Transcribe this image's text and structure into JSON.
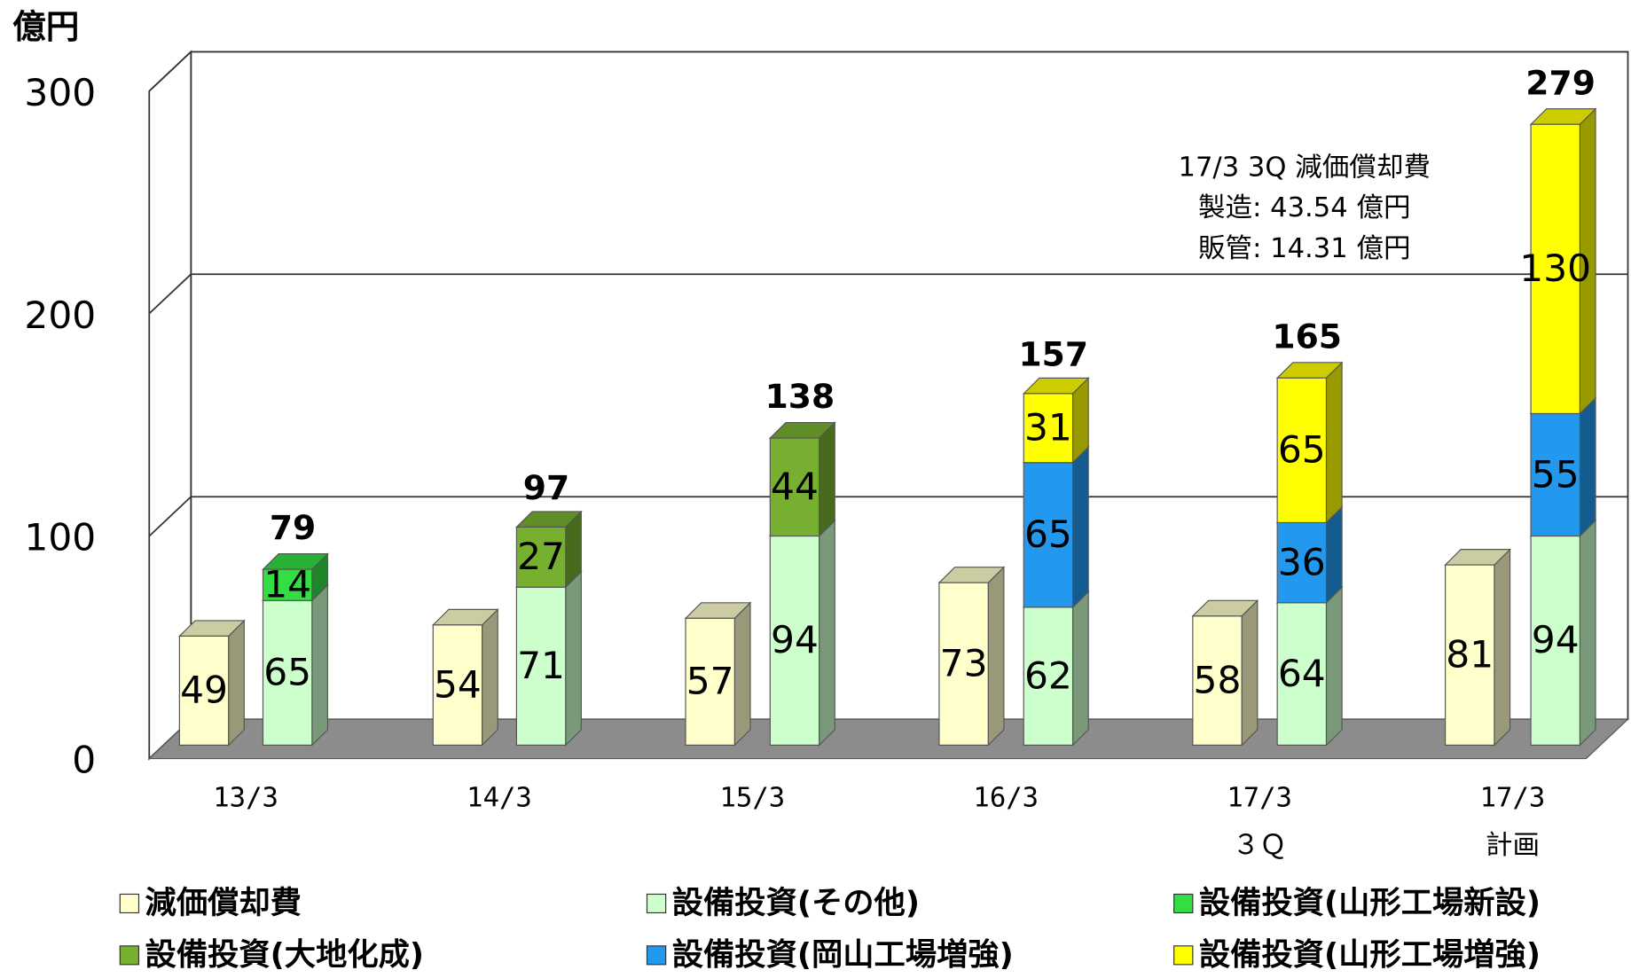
{
  "chart_data": {
    "type": "bar3d",
    "y_label": "億円",
    "categories": [
      [
        "13/3"
      ],
      [
        "14/3"
      ],
      [
        "15/3"
      ],
      [
        "16/3"
      ],
      [
        "17/3",
        "３Ｑ"
      ],
      [
        "17/3",
        "計画"
      ]
    ],
    "series": [
      {
        "name": "減価償却費",
        "color": "#ffffcc",
        "values": [
          49,
          54,
          57,
          73,
          58,
          81
        ]
      },
      {
        "name": "設備投資(その他)",
        "color": "#ccffcc",
        "values": [
          65,
          71,
          94,
          62,
          64,
          94
        ]
      },
      {
        "name": "設備投資(山形工場新設)",
        "color": "#33dd44",
        "values": [
          14,
          null,
          null,
          null,
          null,
          null
        ]
      },
      {
        "name": "設備投資(大地化成)",
        "color": "#77b030",
        "values": [
          null,
          27,
          44,
          null,
          null,
          null
        ]
      },
      {
        "name": "設備投資(岡山工場増強)",
        "color": "#2299ee",
        "values": [
          null,
          null,
          null,
          65,
          36,
          55
        ]
      },
      {
        "name": "設備投資(山形工場増強)",
        "color": "#ffff00",
        "values": [
          null,
          null,
          null,
          31,
          65,
          130
        ]
      }
    ],
    "totals": [
      79,
      97,
      138,
      157,
      165,
      279
    ],
    "annotation": [
      "17/3 3Q  減価償却費",
      "製造: 43.54 億円",
      "販管: 14.31 億円"
    ],
    "ylim": [
      0,
      300
    ],
    "yticks": [
      0,
      100,
      200,
      300
    ],
    "grid": true
  }
}
